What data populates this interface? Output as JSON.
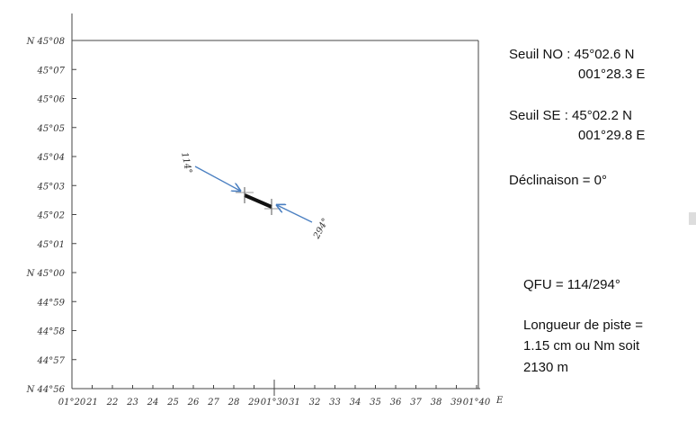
{
  "axes": {
    "y_labels": [
      "N 45°08",
      "45°07",
      "45°06",
      "45°05",
      "45°04",
      "45°03",
      "45°02",
      "45°01",
      "N 45°00",
      "44°59",
      "44°58",
      "44°57",
      "N 44°56"
    ],
    "x_labels": [
      "01°20",
      "21",
      "22",
      "23",
      "24",
      "25",
      "26",
      "27",
      "28",
      "29",
      "01°30",
      "31",
      "32",
      "33",
      "34",
      "35",
      "36",
      "37",
      "38",
      "39",
      "01°40"
    ],
    "x_axis_letter": "E"
  },
  "runway": {
    "heading_nw": "114°",
    "heading_se": "294°"
  },
  "info": {
    "threshold_nw": [
      "Seuil NO : 45°02.6 N",
      "001°28.3 E"
    ],
    "threshold_se": [
      "Seuil SE : 45°02.2 N",
      "001°29.8 E"
    ],
    "declination": "Déclinaison = 0°",
    "qfu": "QFU = 114/294°",
    "length": [
      "Longueur de piste =",
      "1.15 cm ou Nm soit",
      "2130 m"
    ]
  }
}
